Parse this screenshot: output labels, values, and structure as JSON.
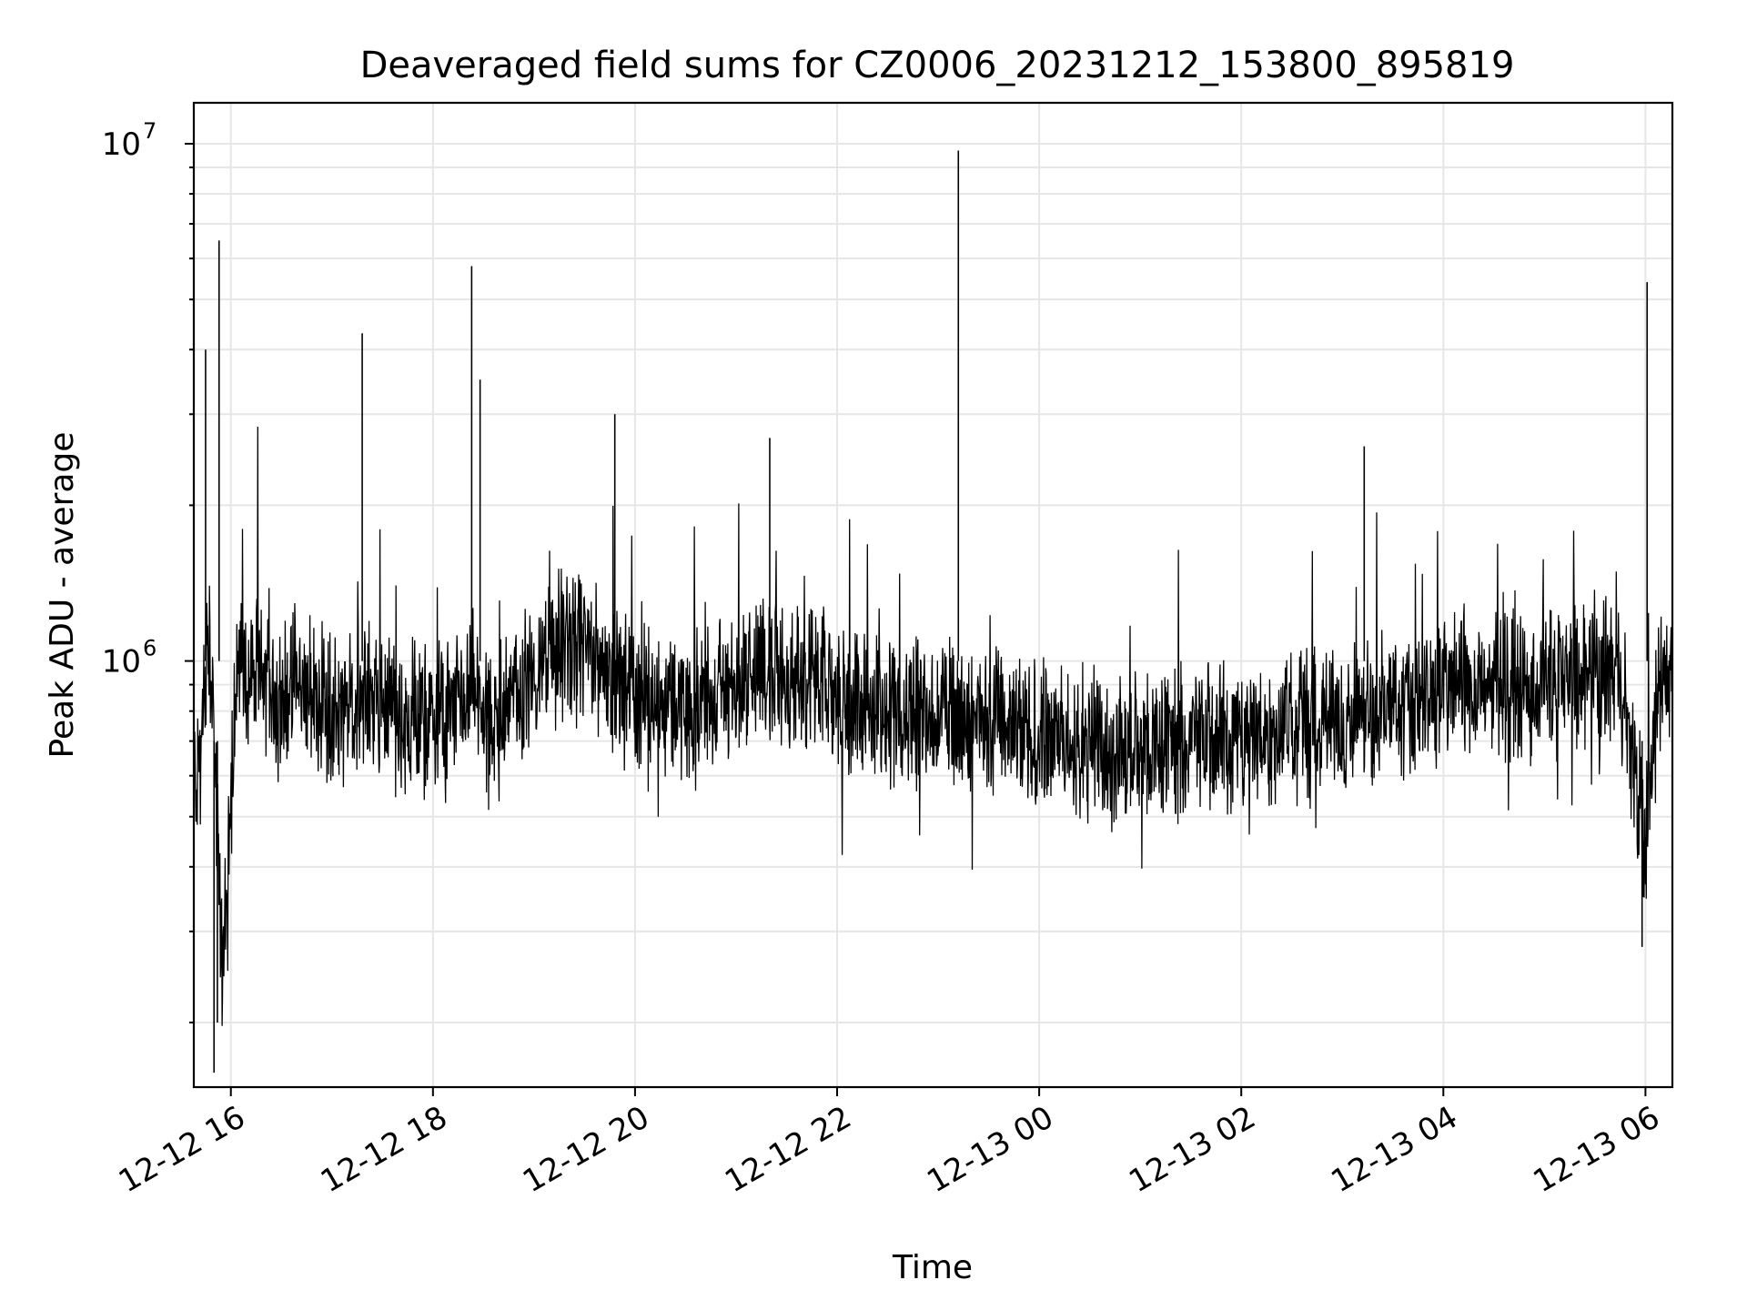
{
  "chart_data": {
    "type": "line",
    "title": "Deaveraged field sums for CZ0006_20231212_153800_895819",
    "xlabel": "Time",
    "ylabel": "Peak ADU - average",
    "x_scale": "time",
    "y_scale": "log",
    "xlim": [
      "2023-12-12 15:38",
      "2023-12-13 06:16"
    ],
    "ylim": [
      150000,
      12000000
    ],
    "x_tick_labels": [
      "12-12 16",
      "12-12 18",
      "12-12 20",
      "12-12 22",
      "12-13 00",
      "12-13 02",
      "12-13 04",
      "12-13 06"
    ],
    "x_tick_values": [
      "2023-12-12 16:00",
      "2023-12-12 18:00",
      "2023-12-12 20:00",
      "2023-12-12 22:00",
      "2023-12-13 00:00",
      "2023-12-13 02:00",
      "2023-12-13 04:00",
      "2023-12-13 06:00"
    ],
    "y_tick_labels": [
      "10^6",
      "10^7"
    ],
    "y_tick_values": [
      1000000,
      10000000
    ],
    "grid": true,
    "line_color": "#000000",
    "series": [
      {
        "x": [
          "2023-12-12 15:40",
          "2023-12-12 15:48",
          "2023-12-12 15:52",
          "2023-12-12 15:55",
          "2023-12-12 15:58",
          "2023-12-12 16:02",
          "2023-12-12 16:10",
          "2023-12-12 16:20",
          "2023-12-12 16:30",
          "2023-12-12 16:38",
          "2023-12-12 16:48",
          "2023-12-12 17:00",
          "2023-12-12 17:10",
          "2023-12-12 17:20",
          "2023-12-12 17:30",
          "2023-12-12 17:40",
          "2023-12-12 17:50",
          "2023-12-12 18:00",
          "2023-12-12 18:10",
          "2023-12-12 18:20",
          "2023-12-12 18:24",
          "2023-12-12 18:35",
          "2023-12-12 18:45",
          "2023-12-12 19:00",
          "2023-12-12 19:15",
          "2023-12-12 19:30",
          "2023-12-12 19:45",
          "2023-12-12 19:50",
          "2023-12-12 20:00",
          "2023-12-12 20:15",
          "2023-12-12 20:30",
          "2023-12-12 20:45",
          "2023-12-12 21:00",
          "2023-12-12 21:15",
          "2023-12-12 21:30",
          "2023-12-12 21:45",
          "2023-12-12 22:00",
          "2023-12-12 22:15",
          "2023-12-12 22:30",
          "2023-12-12 22:45",
          "2023-12-12 23:00",
          "2023-12-12 23:15",
          "2023-12-12 23:30",
          "2023-12-12 23:45",
          "2023-12-13 00:00",
          "2023-12-13 00:15",
          "2023-12-13 00:30",
          "2023-12-13 00:45",
          "2023-12-13 01:00",
          "2023-12-13 01:15",
          "2023-12-13 01:30",
          "2023-12-13 01:45",
          "2023-12-13 02:00",
          "2023-12-13 02:15",
          "2023-12-13 02:30",
          "2023-12-13 02:45",
          "2023-12-13 03:00",
          "2023-12-13 03:15",
          "2023-12-13 03:30",
          "2023-12-13 03:45",
          "2023-12-13 04:00",
          "2023-12-13 04:15",
          "2023-12-13 04:30",
          "2023-12-13 04:45",
          "2023-12-13 05:00",
          "2023-12-13 05:15",
          "2023-12-13 05:30",
          "2023-12-13 05:45",
          "2023-12-13 05:52",
          "2023-12-13 06:00",
          "2023-12-13 06:08",
          "2023-12-13 06:15"
        ],
        "y": [
          600000,
          1100000,
          450000,
          250000,
          350000,
          850000,
          950000,
          900000,
          850000,
          900000,
          850000,
          820000,
          800000,
          850000,
          800000,
          780000,
          800000,
          750000,
          800000,
          820000,
          900000,
          700000,
          850000,
          950000,
          1050000,
          1050000,
          950000,
          900000,
          850000,
          850000,
          800000,
          850000,
          900000,
          950000,
          950000,
          900000,
          850000,
          820000,
          800000,
          800000,
          800000,
          780000,
          750000,
          720000,
          720000,
          700000,
          680000,
          660000,
          680000,
          700000,
          720000,
          700000,
          720000,
          720000,
          750000,
          760000,
          760000,
          780000,
          820000,
          850000,
          880000,
          900000,
          920000,
          880000,
          900000,
          950000,
          950000,
          950000,
          650000,
          450000,
          900000,
          1000000
        ]
      }
    ],
    "notable_spikes": [
      {
        "x": "2023-12-12 15:45",
        "y": 4000000
      },
      {
        "x": "2023-12-12 15:53",
        "y": 6500000
      },
      {
        "x": "2023-12-12 18:23",
        "y": 5800000
      },
      {
        "x": "2023-12-12 18:28",
        "y": 3500000
      },
      {
        "x": "2023-12-12 17:18",
        "y": 4300000
      },
      {
        "x": "2023-12-12 23:12",
        "y": 9700000
      },
      {
        "x": "2023-12-13 06:01",
        "y": 5400000
      },
      {
        "x": "2023-12-12 19:48",
        "y": 3000000
      },
      {
        "x": "2023-12-12 21:20",
        "y": 2700000
      },
      {
        "x": "2023-12-13 03:13",
        "y": 2600000
      }
    ],
    "notable_dips": [
      {
        "x": "2023-12-12 15:50",
        "y": 160000
      },
      {
        "x": "2023-12-12 15:52",
        "y": 200000
      },
      {
        "x": "2023-12-13 05:58",
        "y": 280000
      }
    ]
  }
}
